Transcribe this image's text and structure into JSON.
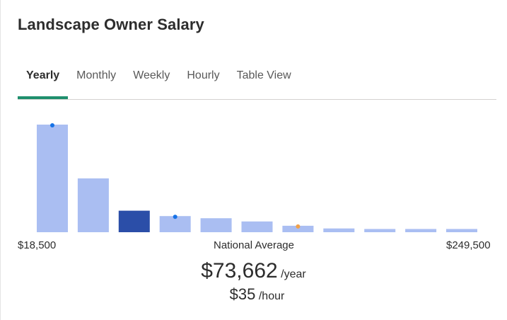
{
  "title": "Landscape Owner Salary",
  "tabs": [
    {
      "label": "Yearly",
      "active": true
    },
    {
      "label": "Monthly",
      "active": false
    },
    {
      "label": "Weekly",
      "active": false
    },
    {
      "label": "Hourly",
      "active": false
    },
    {
      "label": "Table View",
      "active": false
    }
  ],
  "chart_data": {
    "type": "bar",
    "title": "",
    "xlabel": "",
    "ylabel": "",
    "bars": [
      {
        "value": 100,
        "highlight": false,
        "marker": "blue"
      },
      {
        "value": 50,
        "highlight": false,
        "marker": null
      },
      {
        "value": 20,
        "highlight": true,
        "marker": null
      },
      {
        "value": 15,
        "highlight": false,
        "marker": "blue"
      },
      {
        "value": 13,
        "highlight": false,
        "marker": null
      },
      {
        "value": 10,
        "highlight": false,
        "marker": null
      },
      {
        "value": 6,
        "highlight": false,
        "marker": "orange"
      },
      {
        "value": 3.5,
        "highlight": false,
        "marker": null
      },
      {
        "value": 3,
        "highlight": false,
        "marker": null
      },
      {
        "value": 3,
        "highlight": false,
        "marker": null
      },
      {
        "value": 3,
        "highlight": false,
        "marker": null
      }
    ],
    "ylim": [
      0,
      100
    ]
  },
  "axis": {
    "min_label": "$18,500",
    "mid_label": "National Average",
    "max_label": "$249,500"
  },
  "average": {
    "yearly_value": "$73,662",
    "yearly_unit": "/year",
    "hourly_value": "$35",
    "hourly_unit": "/hour"
  },
  "colors": {
    "bar": "#aabef2",
    "bar_highlight": "#2b4ea8",
    "marker_blue": "#1672e6",
    "marker_orange": "#f0a14a",
    "tab_underline": "#1f8f6d"
  }
}
